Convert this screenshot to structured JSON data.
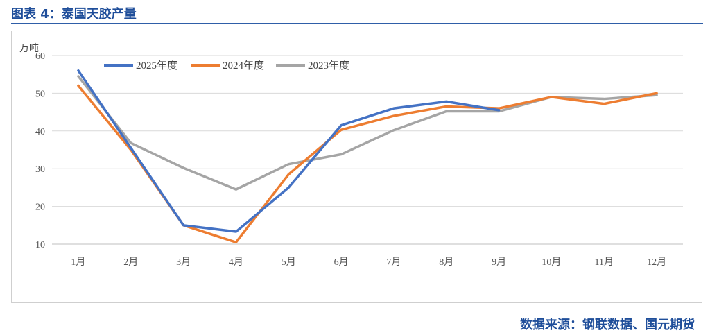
{
  "page": {
    "title": "图表 4：泰国天胶产量",
    "source": "数据来源：钢联数据、国元期货"
  },
  "chart_data": {
    "type": "line",
    "ylabel": "万吨",
    "categories": [
      "1月",
      "2月",
      "3月",
      "4月",
      "5月",
      "6月",
      "7月",
      "8月",
      "9月",
      "10月",
      "11月",
      "12月"
    ],
    "ylim": [
      10,
      60
    ],
    "yticks": [
      10,
      20,
      30,
      40,
      50,
      60
    ],
    "grid": true,
    "legend_position": "top-left",
    "series": [
      {
        "name": "2025年度",
        "color": "#4472c4",
        "values": [
          56,
          35.5,
          15,
          13.3,
          25,
          41.5,
          46,
          47.8,
          45.5,
          null,
          null,
          null
        ]
      },
      {
        "name": "2024年度",
        "color": "#ed7d31",
        "values": [
          52,
          35,
          15,
          10.5,
          28.5,
          40.3,
          44,
          46.5,
          46,
          49,
          47.2,
          50
        ]
      },
      {
        "name": "2023年度",
        "color": "#a5a5a5",
        "values": [
          54.5,
          36.8,
          30.2,
          24.5,
          31.2,
          33.8,
          40.2,
          45.2,
          45.2,
          49,
          48.5,
          49.5
        ]
      }
    ]
  }
}
